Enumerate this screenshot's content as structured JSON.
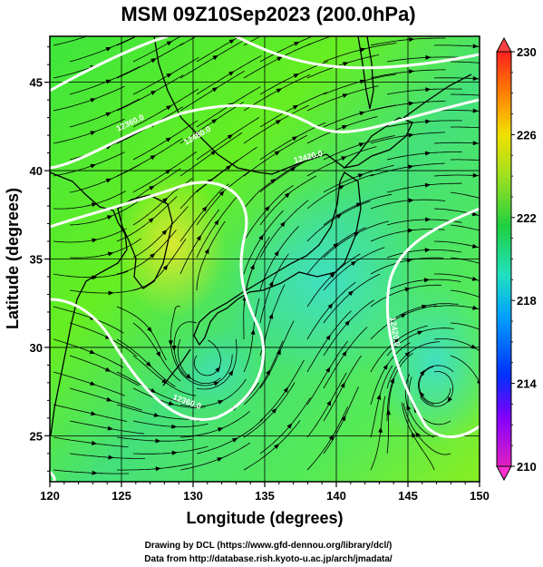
{
  "chart_data": {
    "type": "heatmap",
    "title": "MSM 09Z10Sep2023 (200.0hPa)",
    "xlabel": "Longitude (degrees)",
    "ylabel": "Latitude  (degrees)",
    "xlim": [
      120,
      150
    ],
    "ylim": [
      22.4,
      47.6
    ],
    "xticks": [
      120,
      125,
      130,
      135,
      140,
      145,
      150
    ],
    "yticks": [
      25,
      30,
      35,
      40,
      45
    ],
    "colorbar": {
      "range": [
        210,
        230
      ],
      "ticks": [
        210,
        214,
        218,
        222,
        226,
        230
      ]
    },
    "contour_labels": [
      "12360.0",
      "12480.0",
      "12420.0",
      "12420.0",
      "12360.0"
    ],
    "grid": true,
    "overlays": [
      "streamlines",
      "coastlines",
      "geopotential-height-contours"
    ]
  },
  "credits": {
    "line1": "Drawing by DCL (https://www.gfd-dennou.org/library/dcl/)",
    "line2": "Data from http://database.rish.kyoto-u.ac.jp/arch/jmadata/"
  }
}
